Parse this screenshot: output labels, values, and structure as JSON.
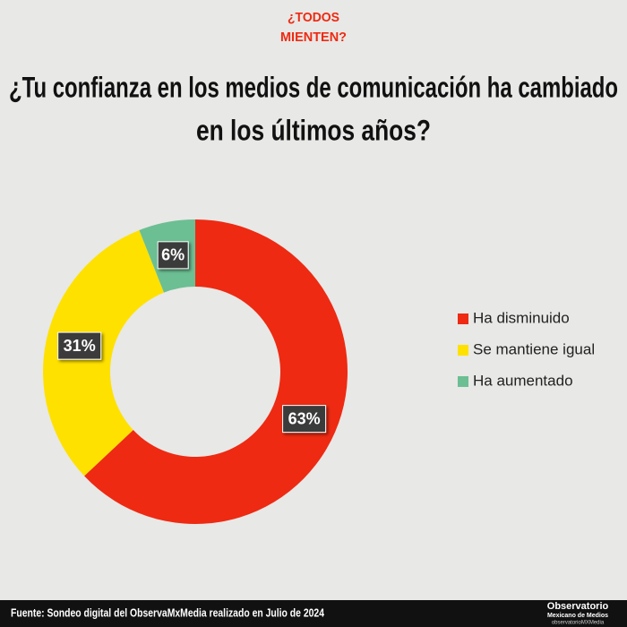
{
  "header": {
    "logo_lines": [
      "¿TODOS",
      "MIENTEN?"
    ]
  },
  "chart_data": {
    "type": "pie",
    "donut": true,
    "title_lines": [
      "¿Tu confianza en los medios de comunicación ha cambiado",
      "en los últimos años?"
    ],
    "categories": [
      "Ha disminuido",
      "Se mantiene igual",
      "Ha aumentado"
    ],
    "values": [
      63,
      31,
      6
    ],
    "value_labels": [
      "63%",
      "31%",
      "6%"
    ],
    "colors": [
      "#ee2a12",
      "#ffe100",
      "#6cbf93"
    ],
    "legend": "right"
  },
  "footer": {
    "source": "Fuente: Sondeo digital del ObservaMxMedia realizado en Julio de 2024",
    "brand_lines": [
      "Observatorio",
      "Mexicano de Medios",
      "observatorioMXMedia"
    ]
  }
}
